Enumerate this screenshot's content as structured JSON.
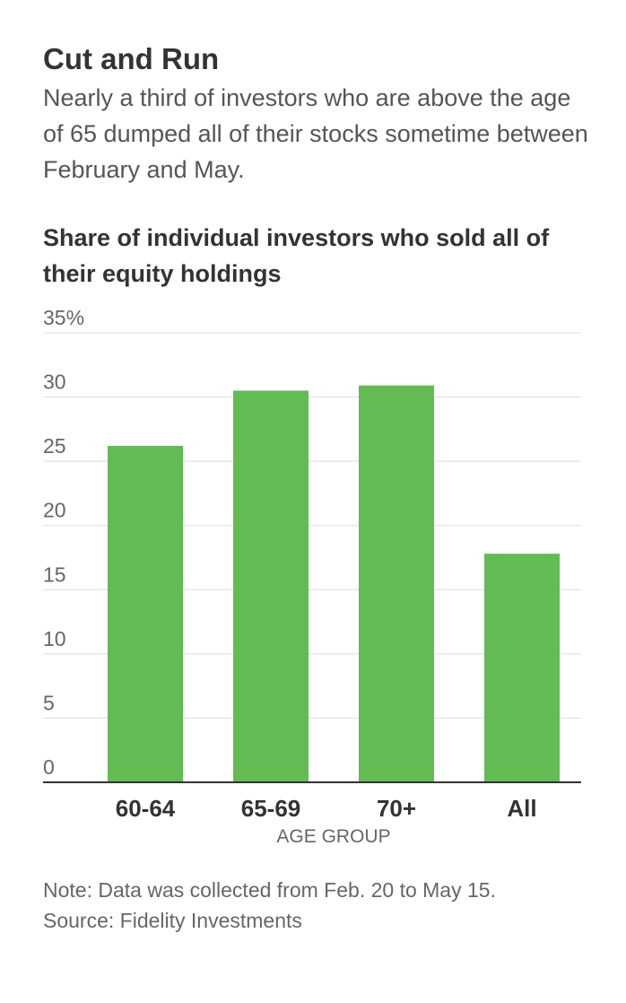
{
  "header": {
    "title": "Cut and Run",
    "subtitle": "Nearly a third of investors who are above the age of 65 dumped all of their stocks sometime between February and May."
  },
  "chart_data": {
    "type": "bar",
    "title": "Share of individual investors who sold all of their equity holdings",
    "xlabel": "AGE GROUP",
    "ylabel": "",
    "categories": [
      "60-64",
      "65-69",
      "70+",
      "All"
    ],
    "values": [
      26.2,
      30.5,
      30.9,
      17.8
    ],
    "ylim": [
      0,
      35
    ],
    "yticks": [
      0,
      5,
      10,
      15,
      20,
      25,
      30,
      35
    ],
    "ytick_labels": [
      "0",
      "5",
      "10",
      "15",
      "20",
      "25",
      "30",
      "35%"
    ],
    "bar_color": "#62bb53",
    "grid": true
  },
  "footer": {
    "note": "Note: Data was collected from Feb. 20 to May 15.",
    "source": "Source: Fidelity Investments"
  }
}
